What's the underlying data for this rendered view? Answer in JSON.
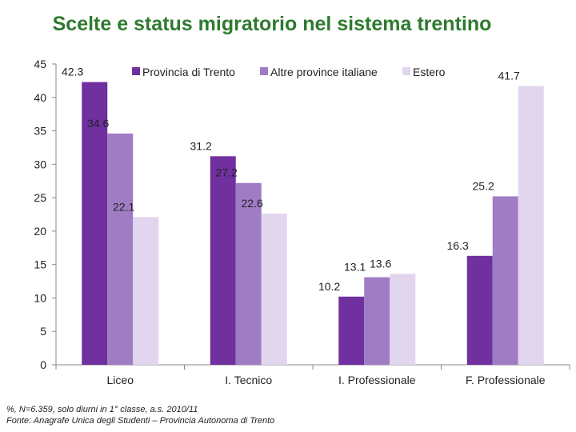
{
  "chart_data": {
    "type": "bar",
    "title": "Scelte e status migratorio nel sistema trentino",
    "xlabel": "",
    "ylabel": "",
    "categories": [
      "Liceo",
      "I. Tecnico",
      "I. Professionale",
      "F. Professionale"
    ],
    "series": [
      {
        "name": "Provincia di Trento",
        "color": "#7030a0",
        "values": [
          42.3,
          31.2,
          10.2,
          16.3
        ]
      },
      {
        "name": "Altre province italiane",
        "color": "#a07cc5",
        "values": [
          34.6,
          27.2,
          13.1,
          25.2
        ]
      },
      {
        "name": "Estero",
        "color": "#e2d5ee",
        "values": [
          22.1,
          22.6,
          13.6,
          41.7
        ]
      }
    ],
    "ylim": [
      0,
      45
    ],
    "yticks": [
      0,
      5,
      10,
      15,
      20,
      25,
      30,
      35,
      40,
      45
    ],
    "legend": "top",
    "grid": false
  },
  "footnotes": {
    "line1": "%, N=6.359, solo diurni in 1° classe, a.s. 2010/11",
    "line2": "Fonte: Anagrafe Unica degli Studenti – Provincia Autonoma di Trento"
  }
}
